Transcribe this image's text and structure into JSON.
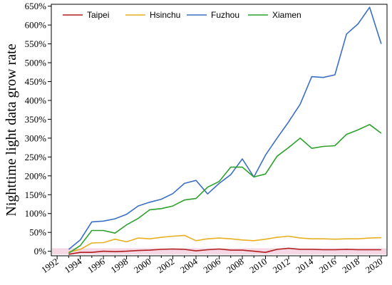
{
  "chart_data": {
    "type": "line",
    "title": "",
    "xlabel": "",
    "ylabel": "Nighttime light data grow rate",
    "x": [
      1993,
      1994,
      1995,
      1996,
      1997,
      1998,
      1999,
      2000,
      2001,
      2002,
      2003,
      2004,
      2005,
      2006,
      2007,
      2008,
      2009,
      2010,
      2011,
      2012,
      2013,
      2014,
      2015,
      2016,
      2017,
      2018,
      2019,
      2020
    ],
    "xticks": [
      1992,
      1994,
      1996,
      1998,
      2000,
      2002,
      2004,
      2006,
      2008,
      2010,
      2012,
      2014,
      2016,
      2018,
      2020
    ],
    "xtick_labels": [
      "1992",
      "1994",
      "1996",
      "1998",
      "2000",
      "2002",
      "2004",
      "2006",
      "2008",
      "2010",
      "2012",
      "2014",
      "2016",
      "2018",
      "2020"
    ],
    "xlim": [
      1991.5,
      2020.5
    ],
    "yticks": [
      0,
      50,
      100,
      150,
      200,
      250,
      300,
      350,
      400,
      450,
      500,
      550,
      600,
      650
    ],
    "ytick_labels": [
      "0%",
      "50%",
      "100%",
      "150%",
      "200%",
      "250%",
      "300%",
      "350%",
      "400%",
      "450%",
      "500%",
      "550%",
      "600%",
      "650%"
    ],
    "ylim": [
      -12,
      655
    ],
    "legend_position": "top",
    "shaded_band": {
      "y0": -8,
      "y1": 8,
      "color": "#f6d8e4"
    },
    "series": [
      {
        "name": "Taipei",
        "color": "#b01e1e",
        "values": [
          -8,
          -3,
          -3,
          0,
          -1,
          0,
          2,
          3,
          5,
          6,
          5,
          1,
          4,
          6,
          3,
          3,
          0,
          -3,
          5,
          8,
          5,
          5,
          4,
          4,
          5,
          4,
          4,
          4
        ]
      },
      {
        "name": "Hsinchu",
        "color": "#e8b020",
        "values": [
          -2,
          5,
          22,
          23,
          32,
          25,
          35,
          33,
          37,
          40,
          42,
          28,
          33,
          35,
          33,
          30,
          28,
          32,
          37,
          40,
          35,
          33,
          33,
          32,
          33,
          33,
          35,
          36
        ]
      },
      {
        "name": "Fuzhou",
        "color": "#3b6fc4",
        "values": [
          5,
          30,
          78,
          80,
          86,
          98,
          120,
          130,
          138,
          153,
          180,
          188,
          152,
          180,
          203,
          245,
          197,
          255,
          300,
          343,
          390,
          463,
          461,
          468,
          576,
          603,
          647,
          550
        ]
      },
      {
        "name": "Xiamen",
        "color": "#2ca02c",
        "values": [
          -5,
          15,
          55,
          55,
          48,
          70,
          87,
          110,
          113,
          120,
          136,
          140,
          170,
          185,
          223,
          223,
          197,
          205,
          252,
          275,
          300,
          273,
          278,
          280,
          310,
          322,
          336,
          313
        ]
      }
    ]
  }
}
